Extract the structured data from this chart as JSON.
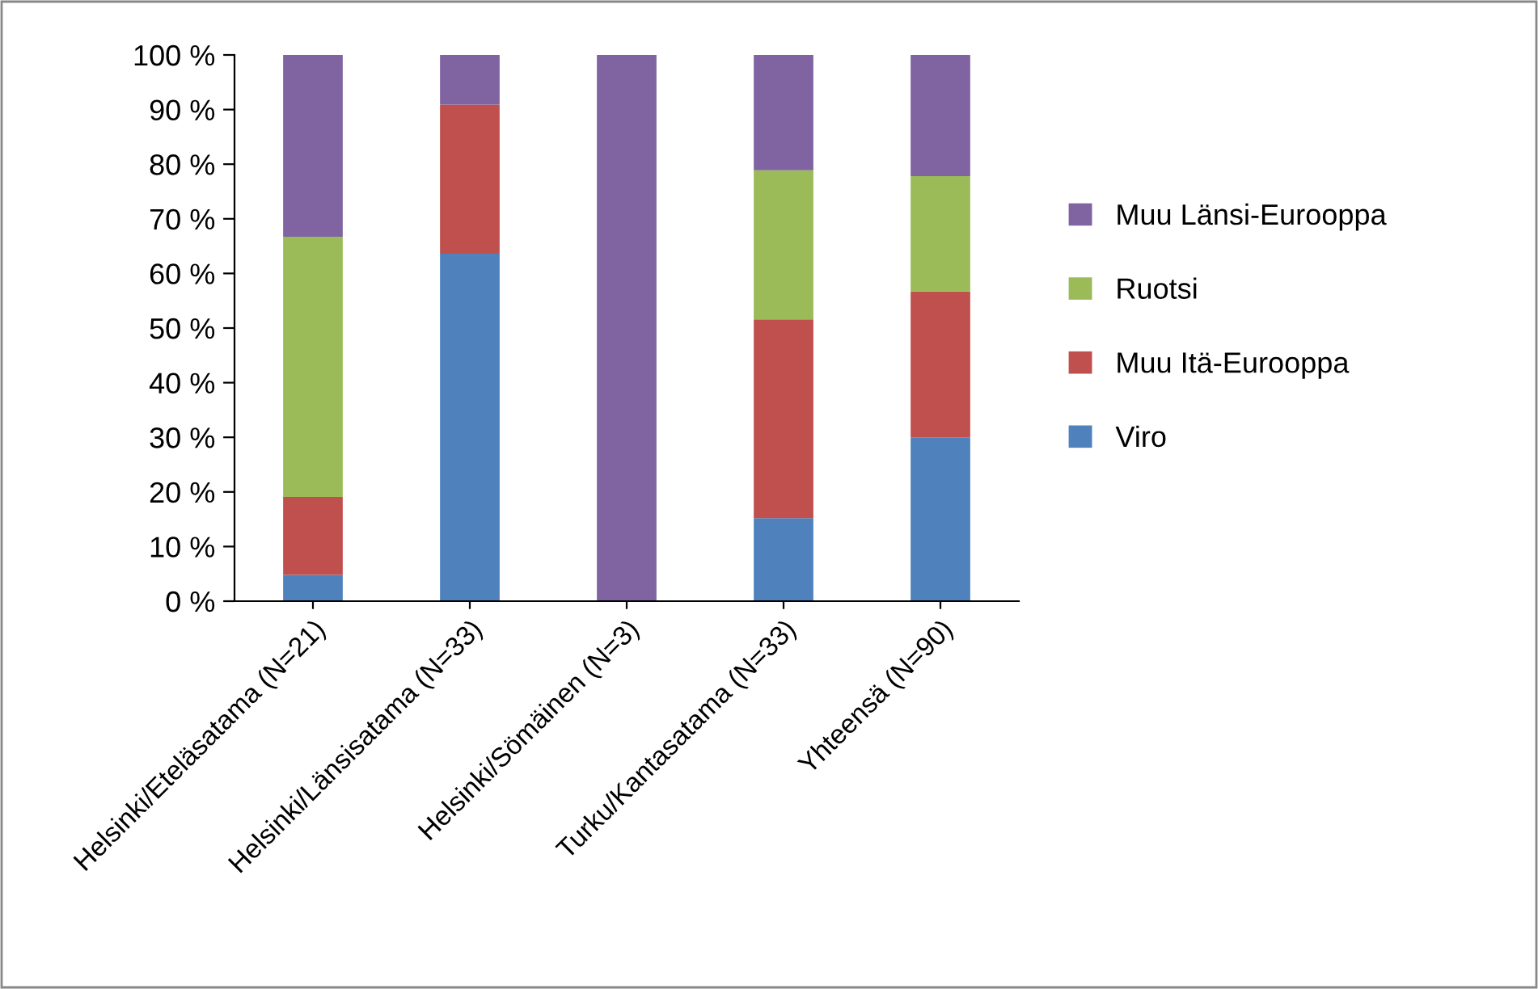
{
  "chart_data": {
    "type": "bar",
    "stacked": true,
    "categories": [
      "Helsinki/Eteläsatama (N=21)",
      "Helsinki/Länsisatama (N=33)",
      "Helsinki/Sömäinen (N=3)",
      "Turku/Kantasatama (N=33)",
      "Yhteensä (N=90)"
    ],
    "series": [
      {
        "name": "Viro",
        "color": "#4f81bd",
        "values": [
          4.8,
          63.6,
          0,
          15.2,
          30.0
        ]
      },
      {
        "name": "Muu Itä-Eurooppa",
        "color": "#c0504d",
        "values": [
          14.3,
          27.3,
          0,
          36.4,
          26.7
        ]
      },
      {
        "name": "Ruotsi",
        "color": "#9bbb59",
        "values": [
          47.6,
          0,
          0,
          27.3,
          21.1
        ]
      },
      {
        "name": "Muu Länsi-Eurooppa",
        "color": "#8064a2",
        "values": [
          33.3,
          9.1,
          100,
          21.2,
          22.2
        ]
      }
    ],
    "ylim": [
      0,
      100
    ],
    "yticks": [
      {
        "value": 0,
        "label": "0 %"
      },
      {
        "value": 10,
        "label": "10 %"
      },
      {
        "value": 20,
        "label": "20 %"
      },
      {
        "value": 30,
        "label": "30 %"
      },
      {
        "value": 40,
        "label": "40 %"
      },
      {
        "value": 50,
        "label": "50 %"
      },
      {
        "value": 60,
        "label": "60 %"
      },
      {
        "value": 70,
        "label": "70 %"
      },
      {
        "value": 80,
        "label": "80 %"
      },
      {
        "value": 90,
        "label": "90 %"
      },
      {
        "value": 100,
        "label": "100 %"
      }
    ],
    "grid": false,
    "legend": "right"
  }
}
